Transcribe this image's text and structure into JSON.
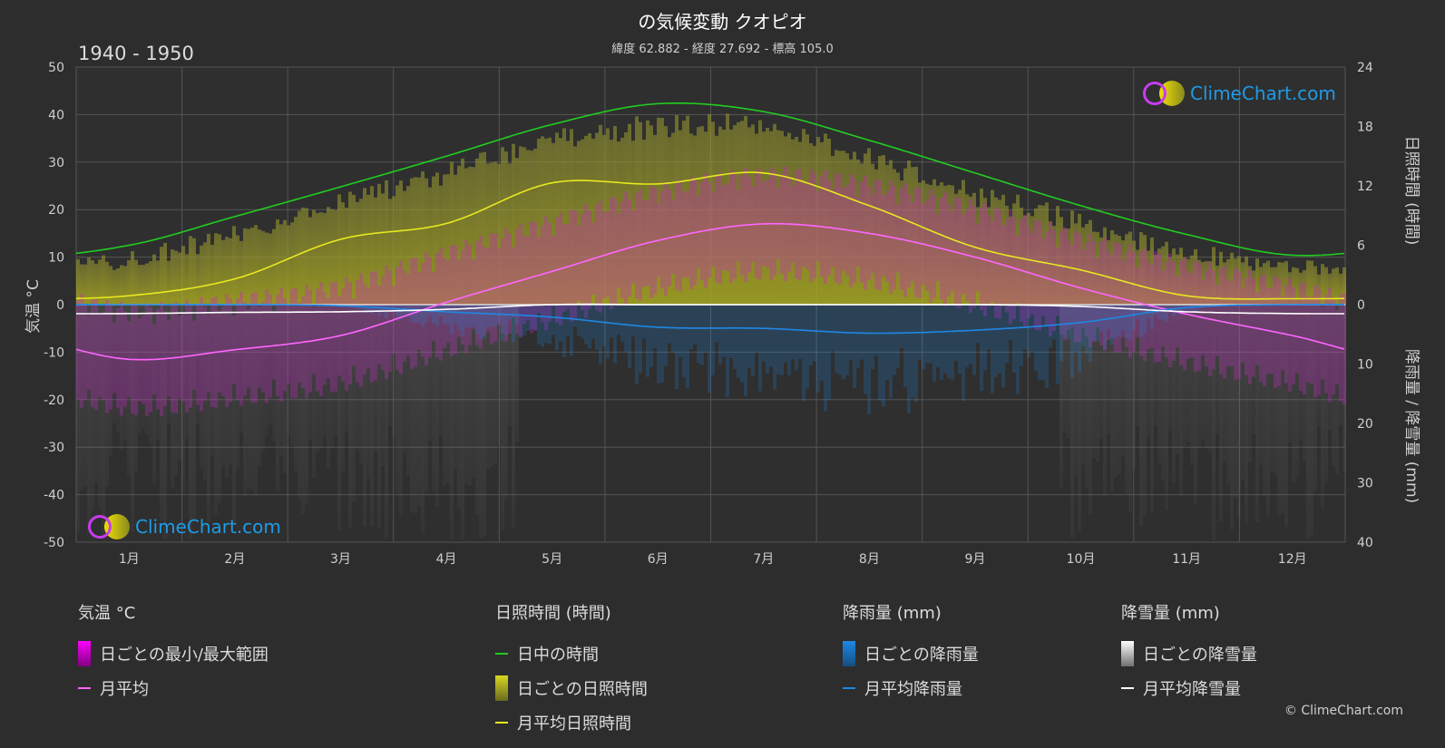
{
  "title": "の気候変動 クオピオ",
  "subtitle": "緯度 62.882 - 経度 27.692 - 標高 105.0",
  "period": "1940 - 1950",
  "watermark": "ClimeChart.com",
  "copyright": "© ClimeChart.com",
  "axes": {
    "left_title": "気温 °C",
    "right_top_title": "日照時間 (時間)",
    "right_bottom_title": "降雨量 / 降雪量 (mm)",
    "left_ticks": [
      "50",
      "40",
      "30",
      "20",
      "10",
      "0",
      "-10",
      "-20",
      "-30",
      "-40",
      "-50"
    ],
    "right_top_ticks": [
      "24",
      "18",
      "12",
      "6",
      "0"
    ],
    "right_bottom_ticks": [
      "10",
      "20",
      "30",
      "40"
    ]
  },
  "legend": {
    "temp": {
      "header": "気温 °C",
      "range": "日ごとの最小/最大範囲",
      "mean": "月平均"
    },
    "sun": {
      "header": "日照時間 (時間)",
      "daylight": "日中の時間",
      "daily": "日ごとの日照時間",
      "mean": "月平均日照時間"
    },
    "rain": {
      "header": "降雨量 (mm)",
      "daily": "日ごとの降雨量",
      "mean": "月平均降雨量"
    },
    "snow": {
      "header": "降雪量 (mm)",
      "daily": "日ごとの降雪量",
      "mean": "月平均降雪量"
    }
  },
  "colors": {
    "daylight": "#22cc22",
    "sunshine_mean": "#e8e820",
    "temp_mean": "#ff66ff",
    "temp_range": "#d020d0",
    "rain": "#1e88e5",
    "snow": "#ffffff"
  },
  "chart_data": {
    "type": "line",
    "categories": [
      "1月",
      "2月",
      "3月",
      "4月",
      "5月",
      "6月",
      "7月",
      "8月",
      "9月",
      "10月",
      "11月",
      "12月"
    ],
    "temperature_ylim": [
      -50,
      50
    ],
    "sunshine_ylim": [
      0,
      24
    ],
    "precip_ylim": [
      0,
      40
    ],
    "series": [
      {
        "name": "日中の時間",
        "axis": "sunshine",
        "values": [
          6.0,
          8.9,
          11.9,
          15.0,
          18.2,
          20.3,
          19.5,
          16.6,
          13.3,
          10.0,
          7.1,
          5.0
        ]
      },
      {
        "name": "月平均日照時間",
        "axis": "sunshine",
        "values": [
          0.9,
          2.6,
          6.6,
          8.2,
          12.3,
          12.2,
          13.3,
          10.0,
          5.8,
          3.5,
          0.9,
          0.6
        ]
      },
      {
        "name": "月平均",
        "axis": "temperature",
        "values": [
          -11.5,
          -9.5,
          -6.5,
          0.5,
          7.0,
          13.5,
          17.0,
          15.0,
          10.0,
          3.5,
          -2.0,
          -6.5
        ]
      },
      {
        "name": "月平均降雨量",
        "axis": "precip",
        "values": [
          0.0,
          0.0,
          0.2,
          1.2,
          2.1,
          3.8,
          4.0,
          4.8,
          4.3,
          3.0,
          0.5,
          0.0
        ]
      },
      {
        "name": "月平均降雪量",
        "axis": "precip",
        "values": [
          1.5,
          1.3,
          1.2,
          0.8,
          0.0,
          0.0,
          0.0,
          0.0,
          0.0,
          0.3,
          1.2,
          1.5
        ]
      }
    ]
  }
}
